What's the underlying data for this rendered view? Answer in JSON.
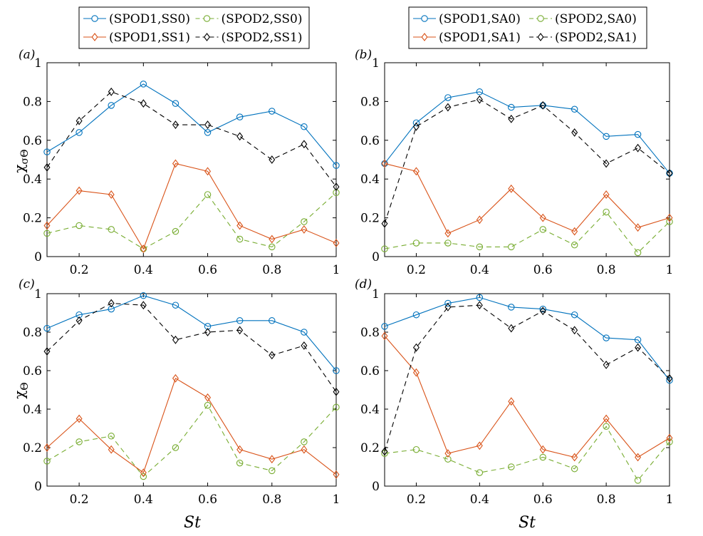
{
  "figure": {
    "legends": [
      {
        "entries": [
          {
            "label": "(SPOD1,SS0)",
            "color": "#0072BD",
            "dash": "solid",
            "marker": "circle"
          },
          {
            "label": "(SPOD2,SS0)",
            "color": "#77AC30",
            "dash": "dashed",
            "marker": "circle"
          },
          {
            "label": "(SPOD1,SS1)",
            "color": "#D95319",
            "dash": "solid",
            "marker": "diamond"
          },
          {
            "label": "(SPOD2,SS1)",
            "color": "#000000",
            "dash": "dashed",
            "marker": "diamond"
          }
        ]
      },
      {
        "entries": [
          {
            "label": "(SPOD1,SA0)",
            "color": "#0072BD",
            "dash": "solid",
            "marker": "circle"
          },
          {
            "label": "(SPOD2,SA0)",
            "color": "#77AC30",
            "dash": "dashed",
            "marker": "circle"
          },
          {
            "label": "(SPOD1,SA1)",
            "color": "#D95319",
            "dash": "solid",
            "marker": "diamond"
          },
          {
            "label": "(SPOD2,SA1)",
            "color": "#000000",
            "dash": "dashed",
            "marker": "diamond"
          }
        ]
      }
    ]
  },
  "chart_data": [
    {
      "panel": "(a)",
      "type": "line",
      "ylabel_base": "χ",
      "ylabel_sub": "σΘ",
      "xlabel": "",
      "xlim": [
        0.1,
        1.0
      ],
      "ylim": [
        0,
        1
      ],
      "xticks": [
        "0.2",
        "0.4",
        "0.6",
        "0.8",
        "1"
      ],
      "yticks": [
        "0",
        "0.2",
        "0.4",
        "0.6",
        "0.8",
        "1"
      ],
      "x": [
        0.1,
        0.2,
        0.3,
        0.4,
        0.5,
        0.6,
        0.7,
        0.8,
        0.9,
        1.0
      ],
      "series": [
        {
          "name": "(SPOD1,SS0)",
          "color": "#0072BD",
          "dash": "solid",
          "marker": "circle",
          "values": [
            0.54,
            0.64,
            0.78,
            0.89,
            0.79,
            0.64,
            0.72,
            0.75,
            0.67,
            0.47
          ]
        },
        {
          "name": "(SPOD2,SS0)",
          "color": "#77AC30",
          "dash": "dashed",
          "marker": "circle",
          "values": [
            0.12,
            0.16,
            0.14,
            0.04,
            0.13,
            0.32,
            0.09,
            0.05,
            0.18,
            0.33
          ]
        },
        {
          "name": "(SPOD1,SS1)",
          "color": "#D95319",
          "dash": "solid",
          "marker": "diamond",
          "values": [
            0.16,
            0.34,
            0.32,
            0.04,
            0.48,
            0.44,
            0.16,
            0.09,
            0.14,
            0.07
          ]
        },
        {
          "name": "(SPOD2,SS1)",
          "color": "#000000",
          "dash": "dashed",
          "marker": "diamond",
          "values": [
            0.46,
            0.7,
            0.85,
            0.79,
            0.68,
            0.68,
            0.62,
            0.5,
            0.58,
            0.36
          ]
        }
      ]
    },
    {
      "panel": "(b)",
      "type": "line",
      "ylabel_base": "",
      "ylabel_sub": "",
      "xlabel": "",
      "xlim": [
        0.1,
        1.0
      ],
      "ylim": [
        0,
        1
      ],
      "xticks": [
        "0.2",
        "0.4",
        "0.6",
        "0.8",
        "1"
      ],
      "yticks": [
        "0",
        "0.2",
        "0.4",
        "0.6",
        "0.8",
        "1"
      ],
      "x": [
        0.1,
        0.2,
        0.3,
        0.4,
        0.5,
        0.6,
        0.7,
        0.8,
        0.9,
        1.0
      ],
      "series": [
        {
          "name": "(SPOD1,SA0)",
          "color": "#0072BD",
          "dash": "solid",
          "marker": "circle",
          "values": [
            0.48,
            0.69,
            0.82,
            0.85,
            0.77,
            0.78,
            0.76,
            0.62,
            0.63,
            0.43
          ]
        },
        {
          "name": "(SPOD2,SA0)",
          "color": "#77AC30",
          "dash": "dashed",
          "marker": "circle",
          "values": [
            0.04,
            0.07,
            0.07,
            0.05,
            0.05,
            0.14,
            0.06,
            0.23,
            0.02,
            0.18
          ]
        },
        {
          "name": "(SPOD1,SA1)",
          "color": "#D95319",
          "dash": "solid",
          "marker": "diamond",
          "values": [
            0.48,
            0.44,
            0.12,
            0.19,
            0.35,
            0.2,
            0.13,
            0.32,
            0.15,
            0.2
          ]
        },
        {
          "name": "(SPOD2,SA1)",
          "color": "#000000",
          "dash": "dashed",
          "marker": "diamond",
          "values": [
            0.17,
            0.67,
            0.77,
            0.81,
            0.71,
            0.78,
            0.64,
            0.48,
            0.56,
            0.43
          ]
        }
      ]
    },
    {
      "panel": "(c)",
      "type": "line",
      "ylabel_base": "χ",
      "ylabel_sub": "Θ",
      "xlabel": "St",
      "xlim": [
        0.1,
        1.0
      ],
      "ylim": [
        0,
        1
      ],
      "xticks": [
        "0.2",
        "0.4",
        "0.6",
        "0.8",
        "1"
      ],
      "yticks": [
        "0",
        "0.2",
        "0.4",
        "0.6",
        "0.8",
        "1"
      ],
      "x": [
        0.1,
        0.2,
        0.3,
        0.4,
        0.5,
        0.6,
        0.7,
        0.8,
        0.9,
        1.0
      ],
      "series": [
        {
          "name": "(SPOD1,SS0)",
          "color": "#0072BD",
          "dash": "solid",
          "marker": "circle",
          "values": [
            0.82,
            0.89,
            0.92,
            0.99,
            0.94,
            0.83,
            0.86,
            0.86,
            0.8,
            0.6
          ]
        },
        {
          "name": "(SPOD2,SS0)",
          "color": "#77AC30",
          "dash": "dashed",
          "marker": "circle",
          "values": [
            0.13,
            0.23,
            0.26,
            0.05,
            0.2,
            0.42,
            0.12,
            0.08,
            0.23,
            0.41
          ]
        },
        {
          "name": "(SPOD1,SS1)",
          "color": "#D95319",
          "dash": "solid",
          "marker": "diamond",
          "values": [
            0.2,
            0.35,
            0.19,
            0.07,
            0.56,
            0.46,
            0.19,
            0.14,
            0.19,
            0.06
          ]
        },
        {
          "name": "(SPOD2,SS1)",
          "color": "#000000",
          "dash": "dashed",
          "marker": "diamond",
          "values": [
            0.7,
            0.86,
            0.95,
            0.94,
            0.76,
            0.8,
            0.81,
            0.68,
            0.73,
            0.49
          ]
        }
      ]
    },
    {
      "panel": "(d)",
      "type": "line",
      "ylabel_base": "",
      "ylabel_sub": "",
      "xlabel": "St",
      "xlim": [
        0.1,
        1.0
      ],
      "ylim": [
        0,
        1
      ],
      "xticks": [
        "0.2",
        "0.4",
        "0.6",
        "0.8",
        "1"
      ],
      "yticks": [
        "0",
        "0.2",
        "0.4",
        "0.6",
        "0.8",
        "1"
      ],
      "x": [
        0.1,
        0.2,
        0.3,
        0.4,
        0.5,
        0.6,
        0.7,
        0.8,
        0.9,
        1.0
      ],
      "series": [
        {
          "name": "(SPOD1,SA0)",
          "color": "#0072BD",
          "dash": "solid",
          "marker": "circle",
          "values": [
            0.83,
            0.89,
            0.95,
            0.98,
            0.93,
            0.92,
            0.89,
            0.77,
            0.76,
            0.55
          ]
        },
        {
          "name": "(SPOD2,SA0)",
          "color": "#77AC30",
          "dash": "dashed",
          "marker": "circle",
          "values": [
            0.17,
            0.19,
            0.14,
            0.07,
            0.1,
            0.15,
            0.09,
            0.31,
            0.03,
            0.23
          ]
        },
        {
          "name": "(SPOD1,SA1)",
          "color": "#D95319",
          "dash": "solid",
          "marker": "diamond",
          "values": [
            0.78,
            0.59,
            0.17,
            0.21,
            0.44,
            0.19,
            0.15,
            0.35,
            0.15,
            0.25
          ]
        },
        {
          "name": "(SPOD2,SA1)",
          "color": "#000000",
          "dash": "dashed",
          "marker": "diamond",
          "values": [
            0.18,
            0.72,
            0.93,
            0.94,
            0.82,
            0.91,
            0.81,
            0.63,
            0.72,
            0.56
          ]
        }
      ]
    }
  ]
}
